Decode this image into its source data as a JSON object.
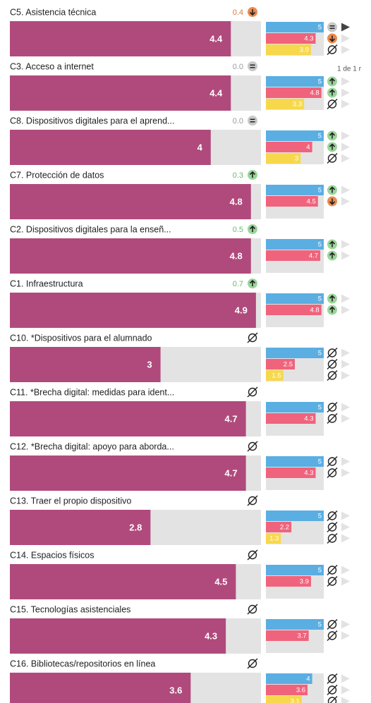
{
  "pager": "1 de 1 r",
  "scale": [
    0,
    5
  ],
  "rows": [
    {
      "label": "C5. Asistencia técnica",
      "delta": 0.4,
      "trend": "down",
      "value": 4.4,
      "comparisons": [
        5,
        4.3,
        3.9
      ],
      "comparison_trends": [
        "equal",
        "down",
        "none"
      ]
    },
    {
      "label": "C3. Acceso a internet",
      "delta": {
        "value": 0,
        "label": "0.0"
      },
      "trend": "equal",
      "value": 4.4,
      "comparisons": [
        5,
        4.8,
        3.3
      ],
      "comparison_trends": [
        "up",
        "up",
        "none"
      ]
    },
    {
      "label": "C8. Dispositivos digitales para el aprend...",
      "delta": {
        "value": 0,
        "label": "0.0"
      },
      "trend": "equal",
      "value": 4,
      "comparisons": [
        5,
        4,
        3
      ],
      "comparison_trends": [
        "up",
        "up",
        "none"
      ]
    },
    {
      "label": "C7. Protección de datos",
      "delta": 0.3,
      "trend": "up",
      "value": 4.8,
      "comparisons": [
        5,
        4.5
      ],
      "comparison_trends": [
        "up",
        "down"
      ]
    },
    {
      "label": "C2. Dispositivos digitales para la enseñ...",
      "delta": 0.5,
      "trend": "up",
      "value": 4.8,
      "comparisons": [
        5,
        4.7
      ],
      "comparison_trends": [
        "up",
        "up"
      ]
    },
    {
      "label": "C1. Infraestructura",
      "delta": 0.7,
      "trend": "up",
      "value": 4.9,
      "comparisons": [
        5,
        4.8
      ],
      "comparison_trends": [
        "up",
        "up"
      ]
    },
    {
      "label": "C10. *Dispositivos para el alumnado",
      "trend": "none",
      "value": 3,
      "comparisons": [
        5,
        2.5,
        1.5
      ],
      "comparison_trends": [
        "none",
        "none",
        "none"
      ]
    },
    {
      "label": "C11. *Brecha digital: medidas para ident...",
      "trend": "none",
      "value": 4.7,
      "comparisons": [
        5,
        4.3
      ],
      "comparison_trends": [
        "none",
        "none"
      ]
    },
    {
      "label": "C12. *Brecha digital: apoyo para aborda...",
      "trend": "none",
      "value": 4.7,
      "comparisons": [
        5,
        4.3
      ],
      "comparison_trends": [
        "none",
        "none"
      ]
    },
    {
      "label": "C13. Traer el propio dispositivo",
      "trend": "none",
      "value": 2.8,
      "comparisons": [
        5,
        2.2,
        1.3
      ],
      "comparison_trends": [
        "none",
        "none",
        "none"
      ]
    },
    {
      "label": "C14. Espacios físicos",
      "trend": "none",
      "value": 4.5,
      "comparisons": [
        5,
        3.9
      ],
      "comparison_trends": [
        "none",
        "none"
      ]
    },
    {
      "label": "C15. Tecnologías asistenciales",
      "trend": "none",
      "value": 4.3,
      "comparisons": [
        5,
        3.7
      ],
      "comparison_trends": [
        "none",
        "none"
      ]
    },
    {
      "label": "C16. Bibliotecas/repositorios en línea",
      "trend": "none",
      "value": 3.6,
      "comparisons": [
        4,
        3.6,
        3.1
      ],
      "comparison_trends": [
        "none",
        "none",
        "none"
      ]
    }
  ]
}
